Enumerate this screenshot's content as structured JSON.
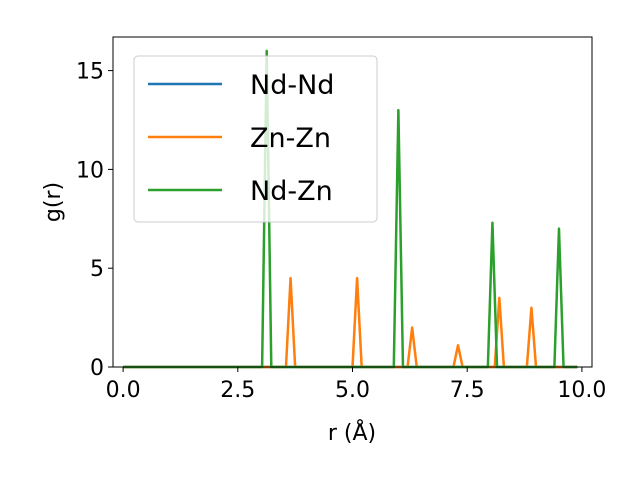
{
  "chart_data": {
    "type": "line",
    "xlabel": "r (Å)",
    "ylabel": "g(r)",
    "xlim": [
      -0.22,
      10.22
    ],
    "ylim": [
      0,
      16.7
    ],
    "xticks": [
      "0.0",
      "2.5",
      "5.0",
      "7.5",
      "10.0"
    ],
    "yticks": [
      "0",
      "5",
      "10",
      "15"
    ],
    "grid": false,
    "legend_position": "top-left",
    "series": [
      {
        "name": "Nd-Nd",
        "color": "#1f77b4",
        "x": [
          0.0,
          9.9
        ],
        "y": [
          0.0,
          0.0
        ]
      },
      {
        "name": "Zn-Zn",
        "color": "#ff7f0e",
        "x": [
          0.0,
          3.55,
          3.65,
          3.75,
          5.0,
          5.1,
          5.2,
          6.2,
          6.3,
          6.4,
          7.2,
          7.3,
          7.4,
          8.1,
          8.2,
          8.3,
          8.8,
          8.9,
          9.0,
          9.9
        ],
        "y": [
          0.0,
          0.0,
          4.5,
          0.0,
          0.0,
          4.5,
          0.0,
          0.0,
          2.0,
          0.0,
          0.0,
          1.1,
          0.0,
          0.0,
          3.5,
          0.0,
          0.0,
          3.0,
          0.0,
          0.0
        ]
      },
      {
        "name": "Nd-Zn",
        "color": "#2ca02c",
        "x": [
          0.0,
          3.03,
          3.13,
          3.23,
          5.9,
          6.0,
          6.1,
          7.95,
          8.05,
          8.15,
          9.4,
          9.5,
          9.6,
          9.9
        ],
        "y": [
          0.0,
          0.0,
          16.0,
          0.0,
          0.0,
          13.0,
          0.0,
          0.0,
          7.3,
          0.0,
          0.0,
          7.0,
          0.0,
          0.0
        ]
      }
    ]
  }
}
